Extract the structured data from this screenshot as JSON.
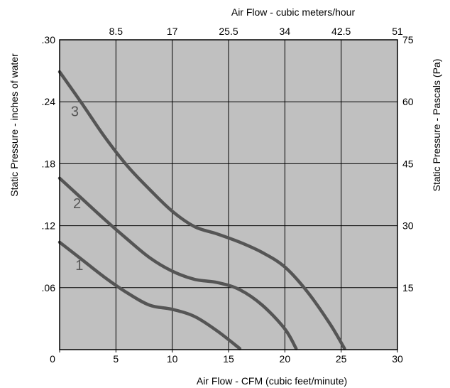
{
  "chart_data": {
    "type": "line",
    "title": "",
    "xlabel": "Air Flow - CFM (cubic feet/minute)",
    "x2label": "Air Flow - cubic meters/hour",
    "ylabel": "Static Pressure - inches of water",
    "y2label": "Static Pressure - Pascals (Pa)",
    "xlim": [
      0,
      30
    ],
    "ylim": [
      0,
      0.3
    ],
    "grid": true,
    "plot_background": "#c0c0c0",
    "curve_color": "#555555",
    "x_ticks": [
      {
        "value": 0,
        "label": "0"
      },
      {
        "value": 5,
        "label": "5"
      },
      {
        "value": 10,
        "label": "10"
      },
      {
        "value": 15,
        "label": "15"
      },
      {
        "value": 20,
        "label": "20"
      },
      {
        "value": 25,
        "label": "25"
      },
      {
        "value": 30,
        "label": "30"
      }
    ],
    "y_ticks": [
      {
        "value": 0,
        "label": "0"
      },
      {
        "value": 0.06,
        "label": ".06"
      },
      {
        "value": 0.12,
        "label": ".12"
      },
      {
        "value": 0.18,
        "label": ".18"
      },
      {
        "value": 0.24,
        "label": ".24"
      },
      {
        "value": 0.3,
        "label": ".30"
      }
    ],
    "x2_ticks": [
      {
        "value": 5,
        "label": "8.5"
      },
      {
        "value": 10,
        "label": "17"
      },
      {
        "value": 15,
        "label": "25.5"
      },
      {
        "value": 20,
        "label": "34"
      },
      {
        "value": 25,
        "label": "42.5"
      },
      {
        "value": 30,
        "label": "51"
      }
    ],
    "y2_ticks": [
      {
        "value": 0.06,
        "label": "15"
      },
      {
        "value": 0.12,
        "label": "30"
      },
      {
        "value": 0.18,
        "label": "45"
      },
      {
        "value": 0.24,
        "label": "60"
      },
      {
        "value": 0.3,
        "label": "75"
      }
    ],
    "series": [
      {
        "name": "1",
        "label_at": [
          1.4,
          0.077
        ],
        "points": [
          [
            0,
            0.104
          ],
          [
            2,
            0.087
          ],
          [
            4,
            0.07
          ],
          [
            6,
            0.055
          ],
          [
            8,
            0.043
          ],
          [
            10,
            0.039
          ],
          [
            12,
            0.032
          ],
          [
            14,
            0.018
          ],
          [
            16,
            0.001
          ]
        ]
      },
      {
        "name": "2",
        "label_at": [
          1.2,
          0.137
        ],
        "points": [
          [
            0,
            0.166
          ],
          [
            2,
            0.146
          ],
          [
            4,
            0.126
          ],
          [
            6,
            0.107
          ],
          [
            8,
            0.089
          ],
          [
            10,
            0.076
          ],
          [
            12,
            0.068
          ],
          [
            14,
            0.065
          ],
          [
            16,
            0.058
          ],
          [
            18,
            0.043
          ],
          [
            20,
            0.02
          ],
          [
            21,
            0.001
          ]
        ]
      },
      {
        "name": "3",
        "label_at": [
          1.0,
          0.226
        ],
        "points": [
          [
            0,
            0.269
          ],
          [
            2,
            0.238
          ],
          [
            4,
            0.206
          ],
          [
            6,
            0.178
          ],
          [
            8,
            0.155
          ],
          [
            10,
            0.134
          ],
          [
            12,
            0.119
          ],
          [
            14,
            0.112
          ],
          [
            16,
            0.104
          ],
          [
            18,
            0.094
          ],
          [
            20,
            0.08
          ],
          [
            22,
            0.056
          ],
          [
            24,
            0.025
          ],
          [
            25.3,
            0.001
          ]
        ]
      }
    ]
  }
}
